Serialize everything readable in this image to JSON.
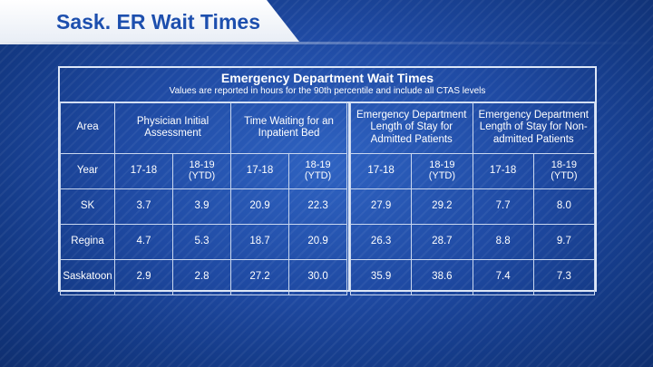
{
  "banner": {
    "title": "Sask. ER Wait Times"
  },
  "table": {
    "title": "Emergency Department Wait Times",
    "subtitle": "Values are reported in hours for the 90th percentile and  include all CTAS levels",
    "area_label": "Area",
    "year_label": "Year",
    "groups": [
      {
        "label": "Physician Initial Assessment"
      },
      {
        "label": "Time Waiting for an Inpatient Bed"
      },
      {
        "label": "Emergency Department Length of Stay for Admitted Patients"
      },
      {
        "label": "Emergency Department Length of Stay for Non-admitted Patients"
      }
    ],
    "years": {
      "a": "17-18",
      "b_line1": "18-19",
      "b_line2": "(YTD)"
    },
    "rows": [
      {
        "area": "SK",
        "values": [
          "3.7",
          "3.9",
          "20.9",
          "22.3",
          "27.9",
          "29.2",
          "7.7",
          "8.0"
        ]
      },
      {
        "area": "Regina",
        "values": [
          "4.7",
          "5.3",
          "18.7",
          "20.9",
          "26.3",
          "28.7",
          "8.8",
          "9.7"
        ]
      },
      {
        "area": "Saskatoon",
        "values": [
          "2.9",
          "2.8",
          "27.2",
          "30.0",
          "35.9",
          "38.6",
          "7.4",
          "7.3"
        ]
      }
    ]
  }
}
